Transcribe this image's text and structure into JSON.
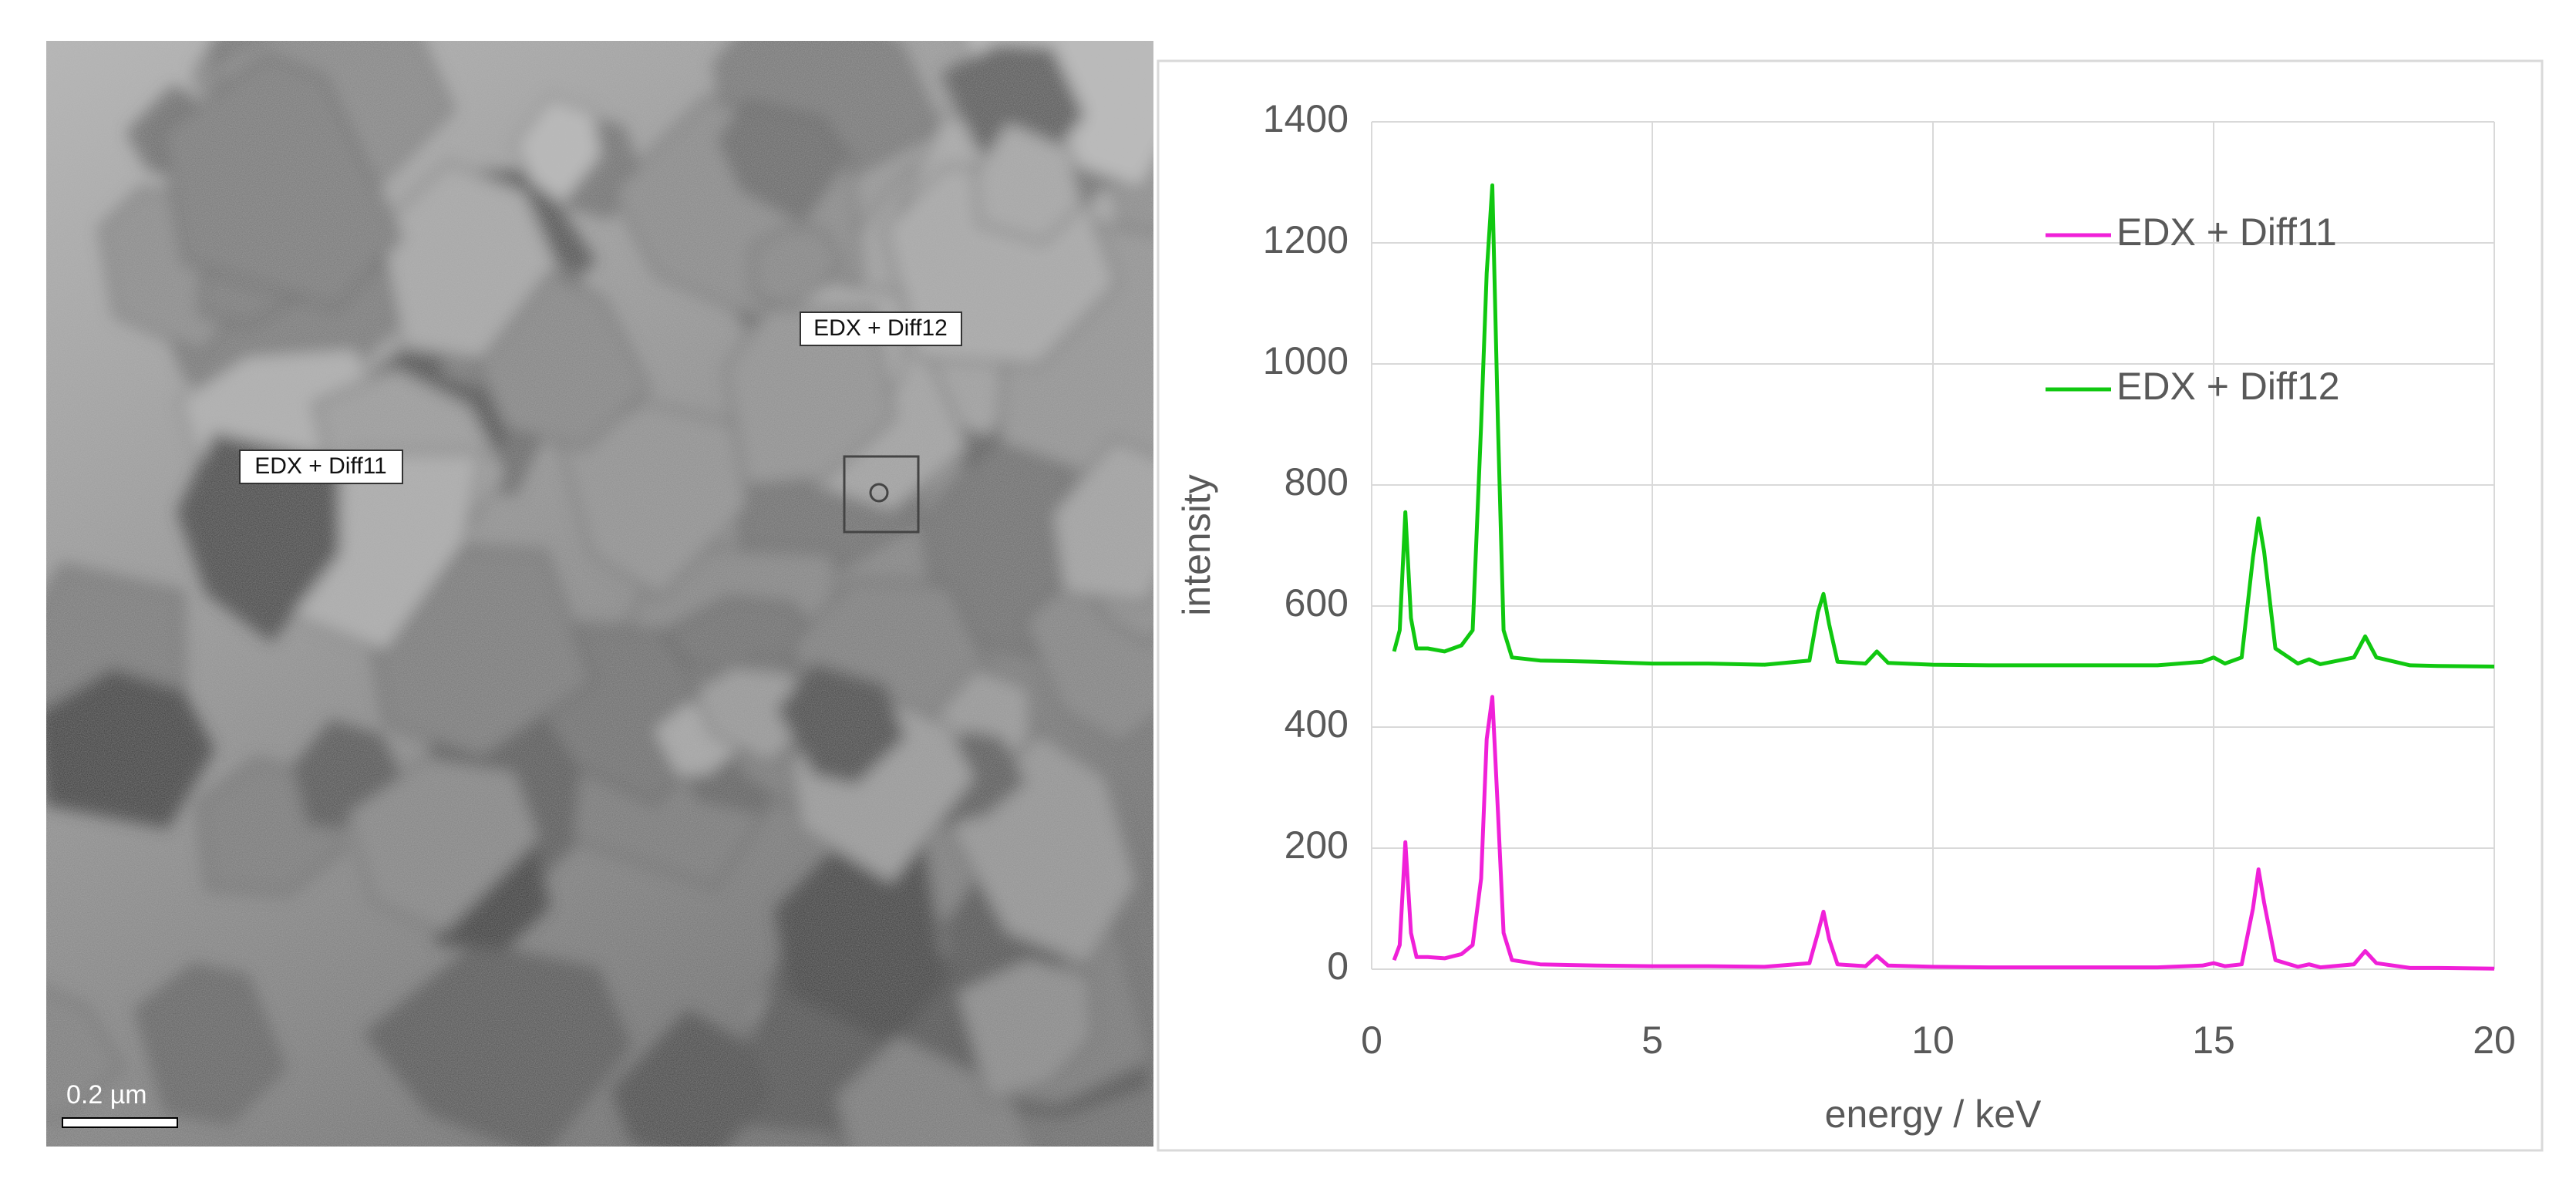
{
  "micrograph": {
    "labels": [
      "EDX + Diff12",
      "EDX + Diff11"
    ],
    "scale_bar": "0.2 µm"
  },
  "chart_data": {
    "type": "line",
    "x_label": "energy / keV",
    "y_label": "intensity",
    "x": [
      0.4,
      0.5,
      0.6,
      0.7,
      0.8,
      1.0,
      1.3,
      1.6,
      1.8,
      1.95,
      2.05,
      2.15,
      2.25,
      2.35,
      2.5,
      3,
      4,
      5,
      6,
      7,
      7.8,
      7.95,
      8.05,
      8.15,
      8.3,
      8.8,
      9.0,
      9.2,
      10,
      11,
      12,
      13,
      14,
      14.8,
      15.0,
      15.2,
      15.5,
      15.7,
      15.8,
      15.9,
      16.1,
      16.5,
      16.7,
      16.9,
      17.5,
      17.7,
      17.9,
      18.5,
      19,
      20
    ],
    "series": [
      {
        "name": "EDX + Diff11",
        "color": "#f020d8",
        "values": [
          15,
          40,
          210,
          60,
          20,
          20,
          18,
          25,
          40,
          150,
          380,
          450,
          260,
          60,
          15,
          8,
          6,
          5,
          5,
          4,
          10,
          60,
          95,
          50,
          8,
          5,
          22,
          6,
          4,
          3,
          3,
          3,
          3,
          6,
          10,
          5,
          8,
          100,
          165,
          110,
          15,
          4,
          8,
          3,
          8,
          30,
          10,
          2,
          2,
          1
        ]
      },
      {
        "name": "EDX + Diff12",
        "color": "#10c810",
        "values": [
          525,
          560,
          755,
          580,
          530,
          530,
          525,
          535,
          560,
          900,
          1150,
          1295,
          900,
          560,
          515,
          510,
          508,
          505,
          505,
          503,
          510,
          590,
          620,
          570,
          508,
          505,
          525,
          506,
          503,
          502,
          502,
          502,
          502,
          508,
          515,
          505,
          515,
          680,
          745,
          690,
          530,
          505,
          512,
          504,
          515,
          550,
          515,
          502,
          501,
          500
        ]
      }
    ],
    "xlim": [
      0,
      20
    ],
    "xticks": [
      0,
      5,
      10,
      15,
      20
    ],
    "ylim": [
      0,
      1400
    ],
    "yticks": [
      0,
      200,
      400,
      600,
      800,
      1000,
      1200,
      1400
    ],
    "grid": true,
    "legend": "upper right"
  }
}
